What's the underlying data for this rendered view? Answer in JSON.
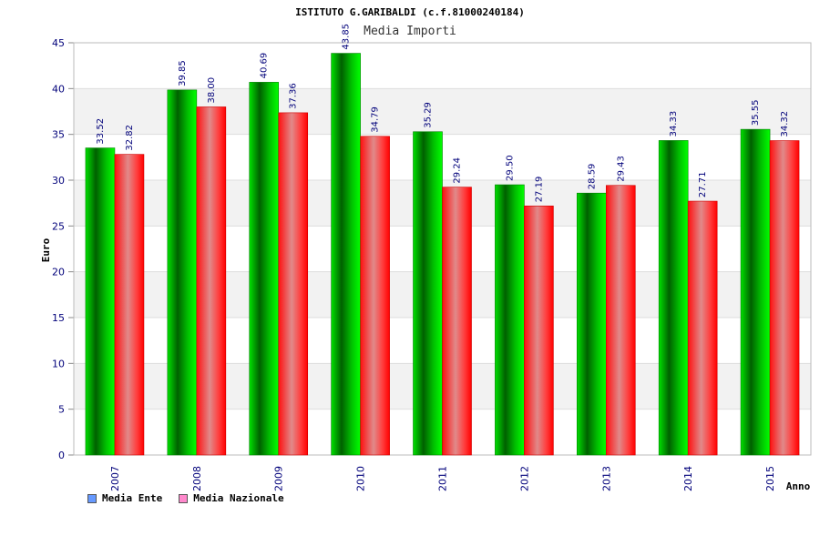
{
  "chart_data": {
    "type": "bar",
    "title": "ISTITUTO G.GARIBALDI (c.f.81000240184)",
    "subtitle": "Media Importi",
    "xlabel": "Anno",
    "ylabel": "Euro",
    "ylim": [
      0,
      45
    ],
    "yticks": [
      "0",
      "5",
      "10",
      "15",
      "20",
      "25",
      "30",
      "35",
      "40",
      "45"
    ],
    "categories": [
      "2007",
      "2008",
      "2009",
      "2010",
      "2011",
      "2012",
      "2013",
      "2014",
      "2015"
    ],
    "series": [
      {
        "name": "Media Ente",
        "color": "#00b800",
        "values": [
          33.52,
          39.85,
          40.69,
          43.85,
          35.29,
          29.5,
          28.59,
          34.33,
          35.55
        ],
        "labels": [
          "33.52",
          "39.85",
          "40.69",
          "43.85",
          "35.29",
          "29.50",
          "28.59",
          "34.33",
          "35.55"
        ]
      },
      {
        "name": "Media Nazionale",
        "color": "#ff0000",
        "values": [
          32.82,
          38.0,
          37.36,
          34.79,
          29.24,
          27.19,
          29.43,
          27.71,
          34.32
        ],
        "labels": [
          "32.82",
          "38.00",
          "37.36",
          "34.79",
          "29.24",
          "27.19",
          "29.43",
          "27.71",
          "34.32"
        ]
      }
    ],
    "grid": true,
    "legend_position": "bottom-left",
    "legend_colors": [
      "#6699ff",
      "#ff88cc"
    ]
  }
}
